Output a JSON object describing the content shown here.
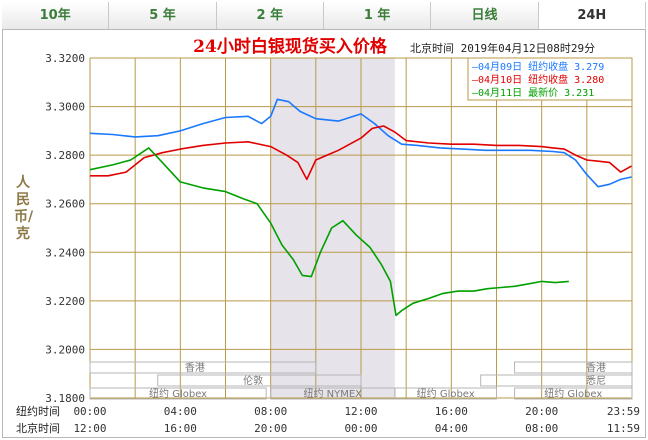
{
  "tabs": [
    {
      "label": "10年",
      "active": false
    },
    {
      "label": "5 年",
      "active": false
    },
    {
      "label": "2 年",
      "active": false
    },
    {
      "label": "1 年",
      "active": false
    },
    {
      "label": "日线",
      "active": false
    },
    {
      "label": "24H",
      "active": true
    }
  ],
  "colors": {
    "grid": "#b89a4a",
    "band": "#e6e3ea",
    "axis_text": "#333333",
    "title": "#e00000",
    "apr09": "#1a78ff",
    "apr10": "#e00000",
    "apr11": "#00a000"
  },
  "chart_data": {
    "type": "line",
    "title": "24小时白银现货买入价格",
    "subtitle": "北京时间  2019年04月12日08时29分",
    "ylabel": "人民币/克",
    "ylim": [
      3.18,
      3.32
    ],
    "xlim": [
      0,
      24
    ],
    "y_ticks": [
      "3.3200",
      "3.3000",
      "3.2800",
      "3.2600",
      "3.2400",
      "3.2200",
      "3.2000",
      "3.1800"
    ],
    "x_row_labels": [
      "纽约时间",
      "北京时间"
    ],
    "x_ticks_ny": [
      "00:00",
      "04:00",
      "08:00",
      "12:00",
      "16:00",
      "20:00",
      "23:59"
    ],
    "x_ticks_bj": [
      "12:00",
      "16:00",
      "20:00",
      "00:00",
      "04:00",
      "08:00",
      "11:59"
    ],
    "grid": true,
    "highlight_band": [
      8,
      13.5
    ],
    "legend_position": "top-right",
    "series": [
      {
        "key": "apr09",
        "name": "04月09日",
        "label": "纽约收盘",
        "value": "3.279",
        "x": [
          0,
          1,
          2,
          3,
          4,
          5,
          6,
          7,
          7.6,
          8,
          8.3,
          8.8,
          9.3,
          10,
          11,
          12,
          12.6,
          13.2,
          13.8,
          14.5,
          15.5,
          16.5,
          17.5,
          18.5,
          19.5,
          20.5,
          21,
          21.5,
          22,
          22.5,
          23,
          23.5,
          23.98
        ],
        "y": [
          3.289,
          3.2885,
          3.2875,
          3.288,
          3.29,
          3.293,
          3.2955,
          3.296,
          3.293,
          3.296,
          3.303,
          3.302,
          3.298,
          3.295,
          3.294,
          3.297,
          3.293,
          3.288,
          3.2845,
          3.284,
          3.283,
          3.2825,
          3.282,
          3.282,
          3.282,
          3.2815,
          3.281,
          3.278,
          3.272,
          3.267,
          3.268,
          3.27,
          3.271
        ]
      },
      {
        "key": "apr10",
        "name": "04月10日",
        "label": "纽约收盘",
        "value": "3.280",
        "x": [
          0,
          0.8,
          1.6,
          2.4,
          3.2,
          4,
          5,
          6,
          7,
          8,
          8.7,
          9.2,
          9.6,
          10,
          10.5,
          11,
          12,
          12.5,
          13,
          13.5,
          14,
          15,
          16,
          17,
          18,
          19,
          20,
          20.5,
          21,
          21.5,
          22,
          22.5,
          23,
          23.5,
          23.98
        ],
        "y": [
          3.2715,
          3.2715,
          3.273,
          3.279,
          3.281,
          3.2825,
          3.284,
          3.285,
          3.2855,
          3.2835,
          3.28,
          3.277,
          3.27,
          3.278,
          3.28,
          3.282,
          3.287,
          3.291,
          3.292,
          3.2895,
          3.286,
          3.285,
          3.2845,
          3.2845,
          3.284,
          3.284,
          3.2835,
          3.283,
          3.2825,
          3.28,
          3.278,
          3.2775,
          3.277,
          3.273,
          3.2755
        ]
      },
      {
        "key": "apr11",
        "name": "04月11日",
        "label": "最新价",
        "value": "3.231",
        "x": [
          0,
          1,
          1.8,
          2.6,
          3.2,
          4,
          5,
          6,
          6.8,
          7.4,
          8,
          8.5,
          9,
          9.4,
          9.8,
          10.2,
          10.7,
          11.2,
          11.8,
          12.4,
          12.9,
          13.3,
          13.55,
          13.8,
          14.3,
          15,
          15.6,
          16.3,
          17,
          17.6,
          18.2,
          18.8,
          19.4,
          20,
          20.6,
          21.2
        ],
        "y": [
          3.274,
          3.276,
          3.278,
          3.283,
          3.277,
          3.269,
          3.2665,
          3.265,
          3.262,
          3.26,
          3.252,
          3.243,
          3.237,
          3.2305,
          3.23,
          3.24,
          3.25,
          3.253,
          3.247,
          3.242,
          3.235,
          3.228,
          3.214,
          3.216,
          3.219,
          3.221,
          3.223,
          3.224,
          3.224,
          3.225,
          3.2255,
          3.226,
          3.227,
          3.228,
          3.2275,
          3.228
        ]
      }
    ],
    "markets": [
      {
        "name": "香港",
        "row": 0,
        "start": 0,
        "end": 10
      },
      {
        "name": "香港",
        "row": 0,
        "start": 18.8,
        "end": 24
      },
      {
        "name": "伦敦",
        "row": 1,
        "start": 3,
        "end": 12
      },
      {
        "name": "悉尼",
        "row": 1,
        "start": 17.3,
        "end": 24
      },
      {
        "name": "纽约 Globex",
        "row": 2,
        "start": 0,
        "end": 7.8
      },
      {
        "name": "纽约 NYMEX",
        "row": 2,
        "start": 8,
        "end": 13.5
      },
      {
        "name": "纽约 Globex",
        "row": 2,
        "start": 13.5,
        "end": 18
      },
      {
        "name": "纽约 Globex",
        "row": 2,
        "start": 18.8,
        "end": 24
      }
    ]
  }
}
